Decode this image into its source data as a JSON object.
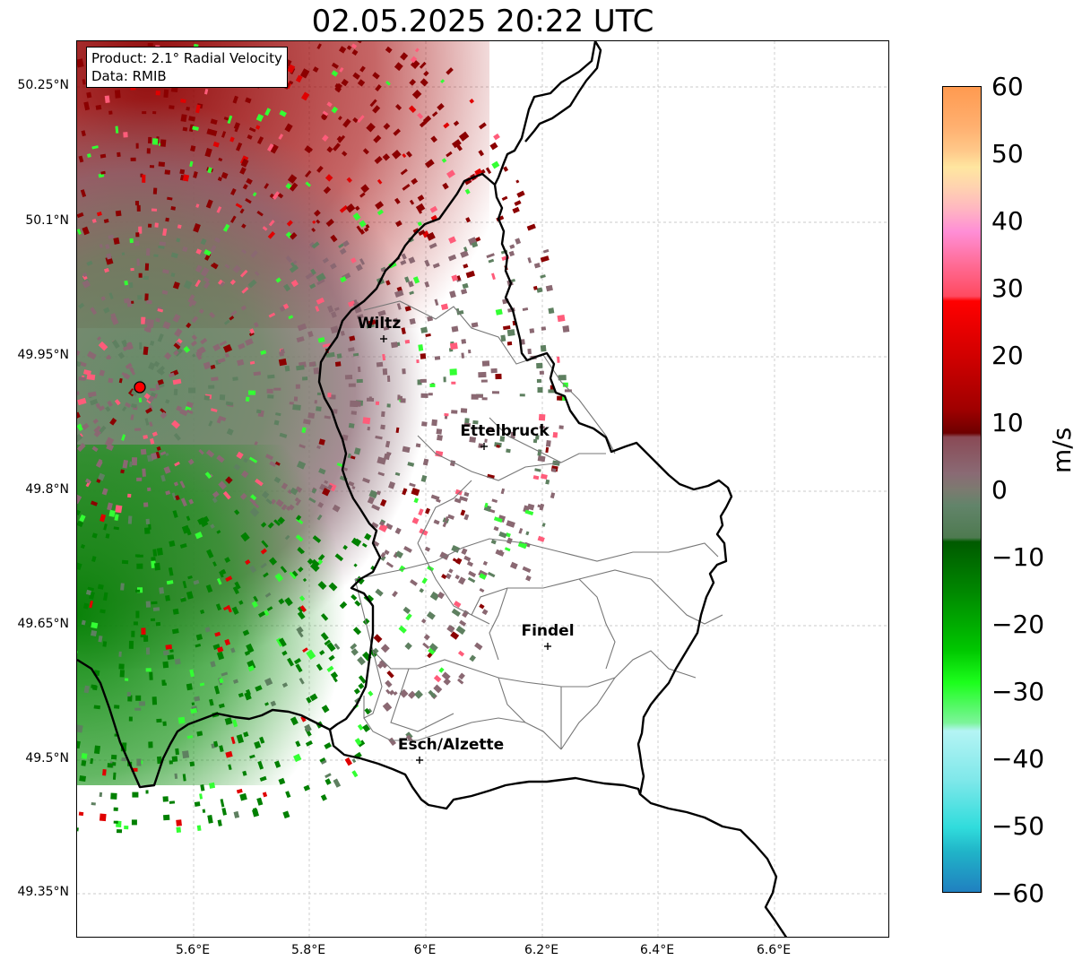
{
  "title": "02.05.2025 20:22 UTC",
  "info": {
    "product": "Product: 2.1° Radial Velocity",
    "data": "Data: RMIB"
  },
  "axes": {
    "lat_labels": [
      "50.25°N",
      "50.1°N",
      "49.95°N",
      "49.8°N",
      "49.65°N",
      "49.5°N",
      "49.35°N"
    ],
    "lon_labels": [
      "5.6°E",
      "5.8°E",
      "6°E",
      "6.2°E",
      "6.4°E",
      "6.6°E"
    ]
  },
  "cities": [
    "Wiltz",
    "Ettelbruck",
    "Findel",
    "Esch/Alzette"
  ],
  "colorbar": {
    "label": "m/s",
    "ticks": [
      "60",
      "50",
      "40",
      "30",
      "20",
      "10",
      "0",
      "−10",
      "−20",
      "−30",
      "−40",
      "−50",
      "−60"
    ]
  },
  "colors": {
    "outbound_dark": "#8b0000",
    "outbound_red": "#e00000",
    "outbound_pink": "#ff5c7a",
    "near_zero_mauve": "#8a6872",
    "near_zero_green": "#5e8060",
    "inbound_green": "#008000",
    "inbound_light": "#33ff33",
    "radar_site": "#ff0000"
  }
}
